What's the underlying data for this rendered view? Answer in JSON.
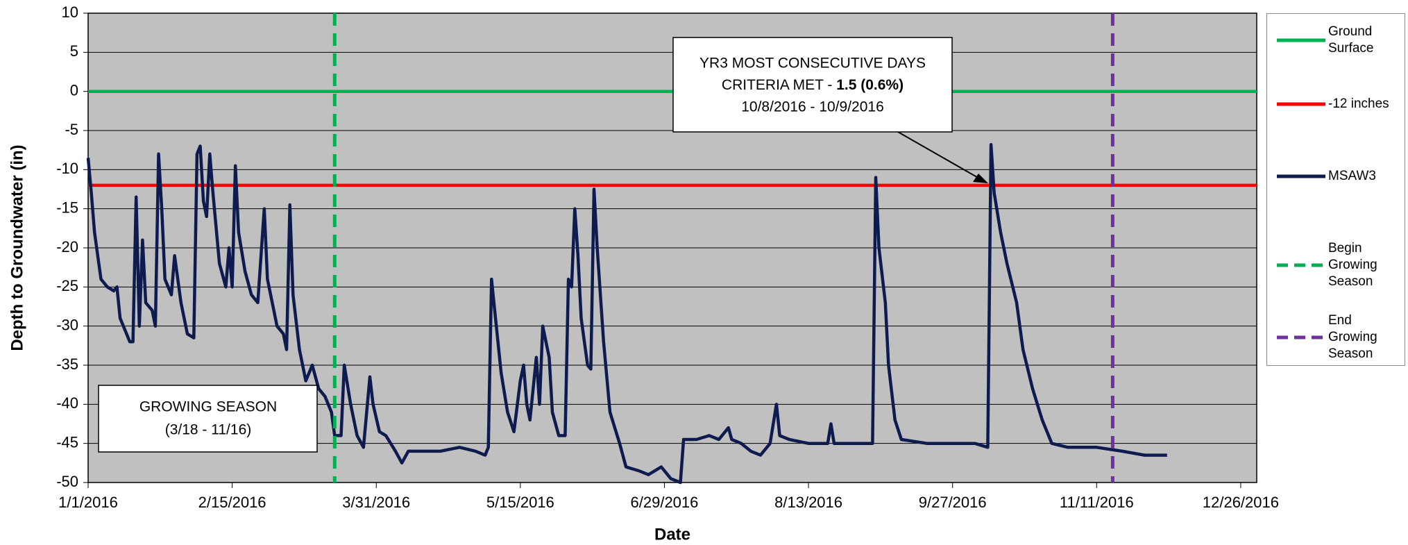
{
  "chart_data": {
    "type": "line",
    "x_label": "Date",
    "y_label": "Depth to Groundwater (in)",
    "xlim": [
      "2016-01-01",
      "2016-12-31"
    ],
    "xticks": [
      {
        "value": "2016-01-01",
        "label": "1/1/2016"
      },
      {
        "value": "2016-02-15",
        "label": "2/15/2016"
      },
      {
        "value": "2016-03-31",
        "label": "3/31/2016"
      },
      {
        "value": "2016-05-15",
        "label": "5/15/2016"
      },
      {
        "value": "2016-06-29",
        "label": "6/29/2016"
      },
      {
        "value": "2016-08-13",
        "label": "8/13/2016"
      },
      {
        "value": "2016-09-27",
        "label": "9/27/2016"
      },
      {
        "value": "2016-11-11",
        "label": "11/11/2016"
      },
      {
        "value": "2016-12-26",
        "label": "12/26/2016"
      }
    ],
    "ylim": [
      -50,
      10
    ],
    "yticks": [
      -50,
      -45,
      -40,
      -35,
      -30,
      -25,
      -20,
      -15,
      -10,
      -5,
      0,
      5,
      10
    ],
    "grid": true,
    "plot_background": "#c0c0c0",
    "series": [
      {
        "name": "Ground Surface",
        "color": "#00b050",
        "dashed": false,
        "x": [
          "2016-01-01",
          "2016-12-31"
        ],
        "values": [
          0,
          0
        ]
      },
      {
        "name": "-12 inches",
        "color": "#ff0000",
        "dashed": false,
        "x": [
          "2016-01-01",
          "2016-12-31"
        ],
        "values": [
          -12,
          -12
        ]
      },
      {
        "name": "MSAW3",
        "color": "#0d1b4e",
        "dashed": false,
        "x": [
          "2016-01-01",
          "2016-01-02",
          "2016-01-03",
          "2016-01-05",
          "2016-01-07",
          "2016-01-09",
          "2016-01-10",
          "2016-01-11",
          "2016-01-13",
          "2016-01-14",
          "2016-01-15",
          "2016-01-16",
          "2016-01-17",
          "2016-01-18",
          "2016-01-19",
          "2016-01-21",
          "2016-01-22",
          "2016-01-23",
          "2016-01-24",
          "2016-01-25",
          "2016-01-27",
          "2016-01-28",
          "2016-01-30",
          "2016-02-01",
          "2016-02-03",
          "2016-02-04",
          "2016-02-05",
          "2016-02-06",
          "2016-02-07",
          "2016-02-08",
          "2016-02-09",
          "2016-02-11",
          "2016-02-13",
          "2016-02-14",
          "2016-02-15",
          "2016-02-16",
          "2016-02-17",
          "2016-02-19",
          "2016-02-21",
          "2016-02-23",
          "2016-02-25",
          "2016-02-26",
          "2016-02-28",
          "2016-02-29",
          "2016-03-02",
          "2016-03-03",
          "2016-03-04",
          "2016-03-05",
          "2016-03-07",
          "2016-03-09",
          "2016-03-11",
          "2016-03-13",
          "2016-03-15",
          "2016-03-17",
          "2016-03-18",
          "2016-03-20",
          "2016-03-21",
          "2016-03-23",
          "2016-03-25",
          "2016-03-27",
          "2016-03-29",
          "2016-03-30",
          "2016-04-01",
          "2016-04-03",
          "2016-04-06",
          "2016-04-08",
          "2016-04-10",
          "2016-04-14",
          "2016-04-20",
          "2016-04-26",
          "2016-05-01",
          "2016-05-04",
          "2016-05-05",
          "2016-05-06",
          "2016-05-07",
          "2016-05-09",
          "2016-05-11",
          "2016-05-13",
          "2016-05-15",
          "2016-05-16",
          "2016-05-17",
          "2016-05-18",
          "2016-05-20",
          "2016-05-21",
          "2016-05-22",
          "2016-05-24",
          "2016-05-25",
          "2016-05-27",
          "2016-05-29",
          "2016-05-30",
          "2016-05-31",
          "2016-06-01",
          "2016-06-02",
          "2016-06-03",
          "2016-06-05",
          "2016-06-06",
          "2016-06-07",
          "2016-06-08",
          "2016-06-10",
          "2016-06-12",
          "2016-06-15",
          "2016-06-17",
          "2016-06-21",
          "2016-06-24",
          "2016-06-28",
          "2016-07-01",
          "2016-07-04",
          "2016-07-05",
          "2016-07-09",
          "2016-07-13",
          "2016-07-16",
          "2016-07-19",
          "2016-07-20",
          "2016-07-23",
          "2016-07-26",
          "2016-07-29",
          "2016-08-01",
          "2016-08-03",
          "2016-08-04",
          "2016-08-07",
          "2016-08-13",
          "2016-08-19",
          "2016-08-20",
          "2016-08-21",
          "2016-08-30",
          "2016-09-02",
          "2016-09-03",
          "2016-09-04",
          "2016-09-06",
          "2016-09-07",
          "2016-09-09",
          "2016-09-11",
          "2016-09-19",
          "2016-09-27",
          "2016-10-04",
          "2016-10-08",
          "2016-10-09",
          "2016-10-10",
          "2016-10-12",
          "2016-10-14",
          "2016-10-17",
          "2016-10-19",
          "2016-10-22",
          "2016-10-25",
          "2016-10-28",
          "2016-11-02",
          "2016-11-11",
          "2016-11-19",
          "2016-11-26",
          "2016-12-03"
        ],
        "values": [
          -8.5,
          -13,
          -18,
          -24,
          -25,
          -25.5,
          -25,
          -29,
          -31,
          -32,
          -32,
          -13.5,
          -30,
          -19,
          -27,
          -28,
          -30,
          -8,
          -15,
          -24,
          -26,
          -21,
          -27,
          -31,
          -31.5,
          -8,
          -7,
          -14,
          -16,
          -8,
          -13,
          -22,
          -25,
          -20,
          -25,
          -9.5,
          -18,
          -23,
          -26,
          -27,
          -15,
          -24,
          -28,
          -30,
          -31,
          -33,
          -14.5,
          -26,
          -33,
          -37,
          -35,
          -38,
          -39,
          -41,
          -44,
          -44,
          -35,
          -40,
          -44,
          -45.5,
          -36.5,
          -40,
          -43.5,
          -44,
          -46,
          -47.5,
          -46,
          -46,
          -46,
          -45.5,
          -46,
          -46.5,
          -45.5,
          -24,
          -28,
          -36,
          -41,
          -43.5,
          -37,
          -35,
          -40,
          -42,
          -34,
          -40,
          -30,
          -34,
          -41,
          -44,
          -44,
          -24,
          -25,
          -15,
          -21,
          -29,
          -35,
          -35.5,
          -12.5,
          -20,
          -32,
          -41,
          -45,
          -48,
          -48.5,
          -49,
          -48,
          -49.5,
          -50,
          -44.5,
          -44.5,
          -44,
          -44.5,
          -43,
          -44.5,
          -45,
          -46,
          -46.5,
          -45,
          -40,
          -44,
          -44.5,
          -45,
          -45,
          -42.5,
          -45,
          -45,
          -45,
          -11,
          -20,
          -27,
          -35,
          -42,
          -44.5,
          -45,
          -45,
          -45,
          -45.5,
          -6.8,
          -13,
          -18,
          -22,
          -27,
          -33,
          -38,
          -42,
          -45,
          -45.5,
          -45.5,
          -46,
          -46.5,
          -46.5
        ]
      },
      {
        "name": "Begin Growing Season",
        "color": "#00b050",
        "dashed": true,
        "x": [
          "2016-03-18",
          "2016-03-18"
        ],
        "values": [
          10,
          -50
        ]
      },
      {
        "name": "End Growing Season",
        "color": "#7030a0",
        "dashed": true,
        "x": [
          "2016-11-16",
          "2016-11-16"
        ],
        "values": [
          10,
          -50
        ]
      }
    ],
    "annotations": [
      {
        "lines": [
          "YR3 MOST CONSECUTIVE DAYS",
          "CRITERIA MET - ",
          "10/8/2016 - 10/9/2016"
        ],
        "bold": "1.5 (0.6%)"
      },
      {
        "lines": [
          "GROWING SEASON",
          "(3/18 - 11/16)"
        ]
      }
    ]
  }
}
